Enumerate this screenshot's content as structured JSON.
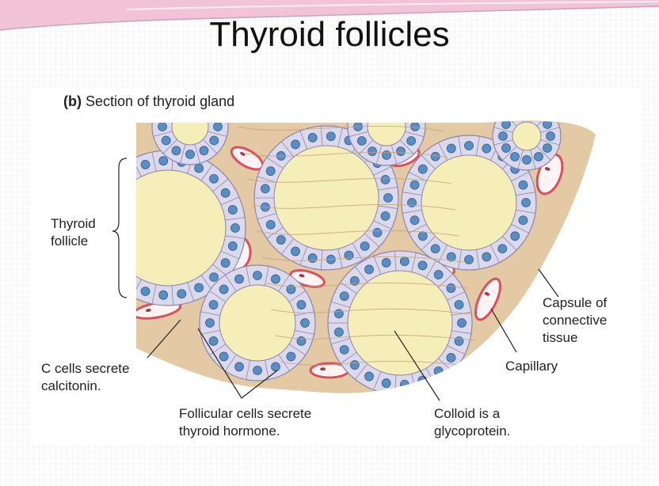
{
  "slide": {
    "title": "Thyroid follicles"
  },
  "figure": {
    "panel_letter": "(b)",
    "caption": "Section of thyroid gland",
    "labels": {
      "thyroid_follicle": "Thyroid\nfollicle",
      "capsule": "Capsule of\nconnective\ntissue",
      "capillary": "Capillary",
      "c_cells": "C cells secrete\ncalcitonin.",
      "follicular_cells": "Follicular cells secrete\nthyroid hormone.",
      "colloid": "Colloid is a\nglycoprotein."
    }
  },
  "colors": {
    "colloid": "#f6eeb8",
    "cell": "#ddd9ec",
    "nucleus": "#5a8dc2",
    "connective": "#e3c9a4",
    "capillary": "#d9505f",
    "accent_pink": "#e58fb0"
  }
}
